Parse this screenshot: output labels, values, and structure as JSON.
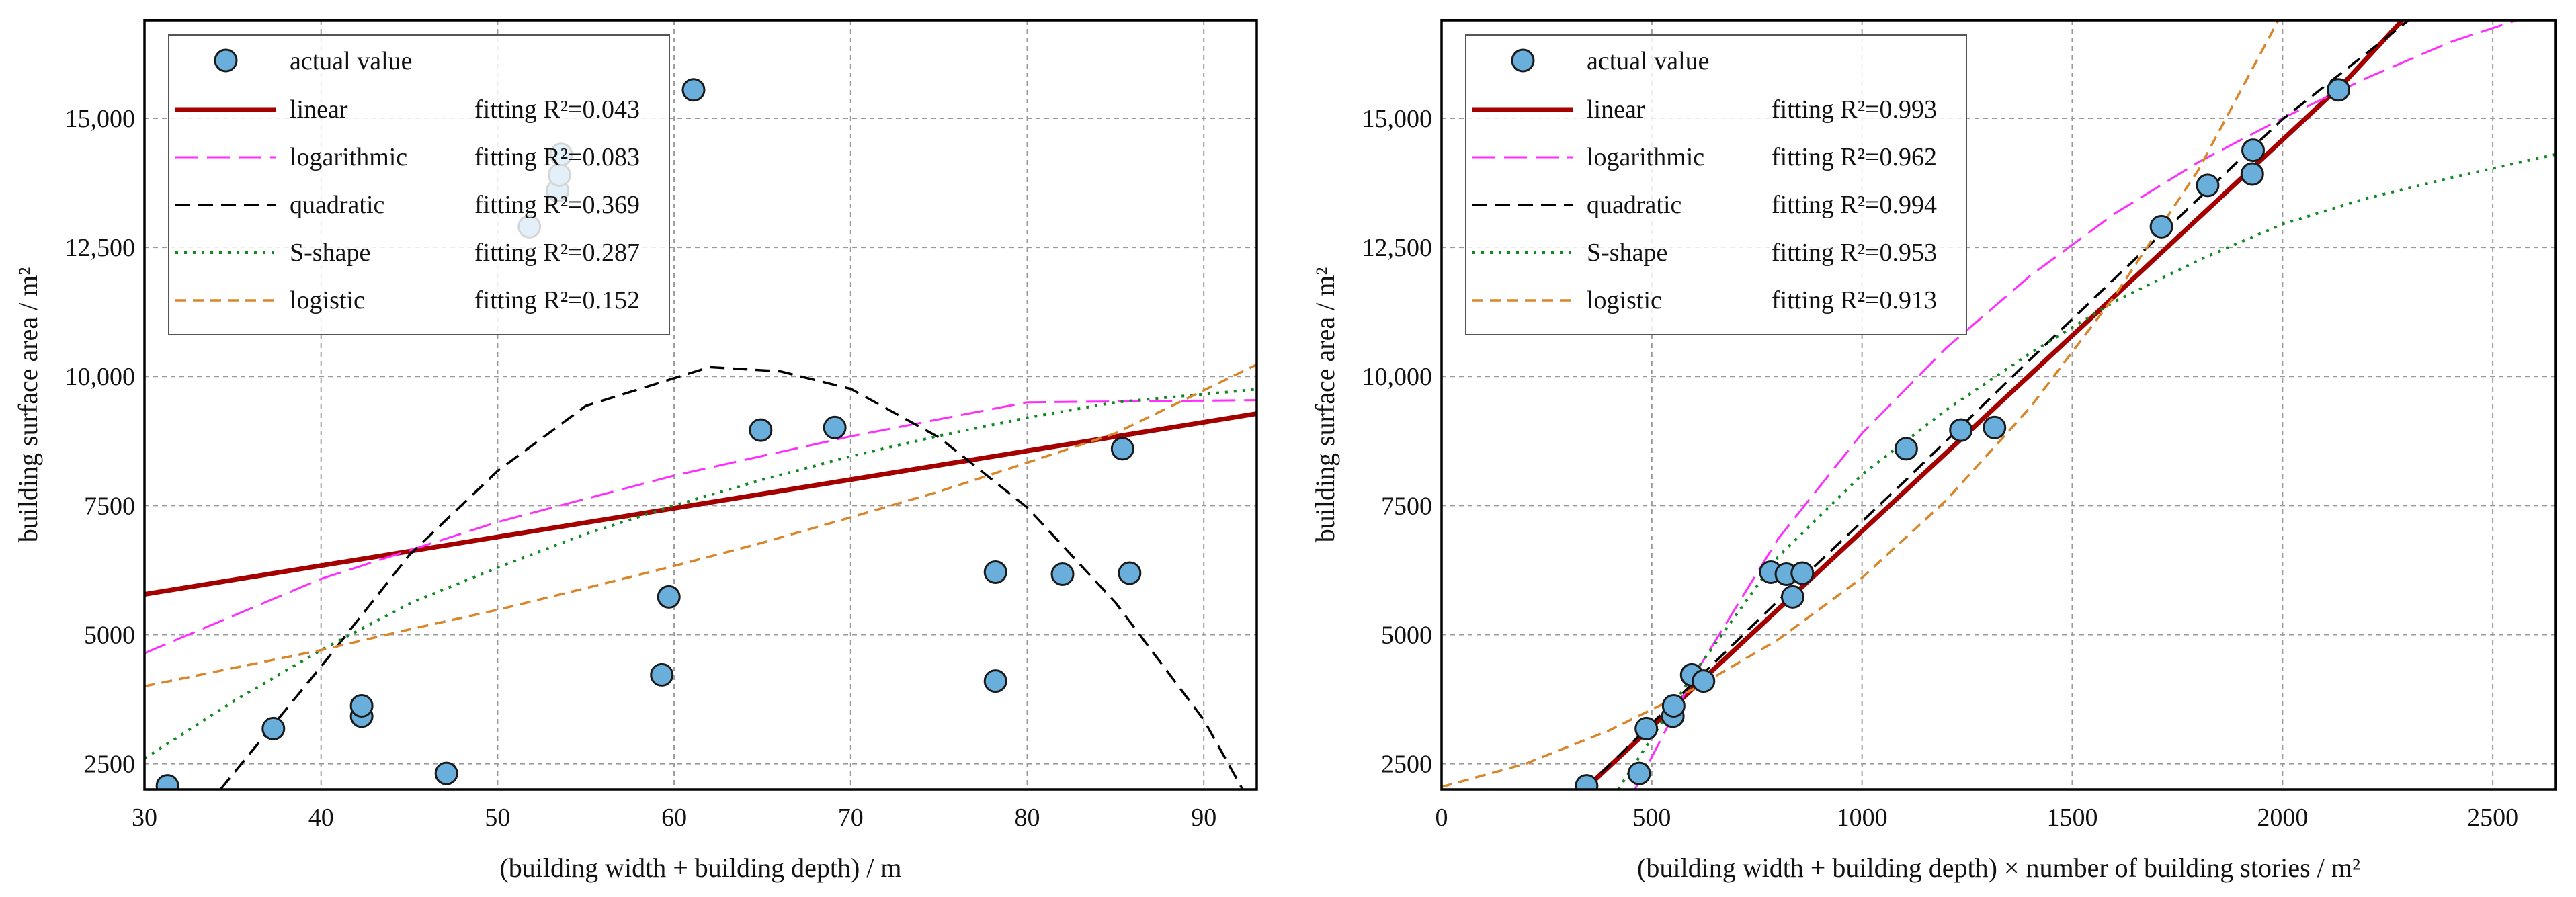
{
  "chart_data": [
    {
      "type": "scatter",
      "xlabel": "(building width + building depth) / m",
      "ylabel": "building surface area / m²",
      "xlim": [
        30,
        93
      ],
      "ylim": [
        2000,
        16900
      ],
      "xticks": [
        30,
        40,
        50,
        60,
        70,
        80,
        90
      ],
      "yticks": [
        2500,
        5000,
        7500,
        10000,
        12500,
        15000
      ],
      "ytick_labels": [
        "2500",
        "5000",
        "7500",
        "10,000",
        "12,500",
        "15,000"
      ],
      "points_name": "actual value",
      "points": [
        {
          "x": 31.3,
          "y": 2070
        },
        {
          "x": 37.3,
          "y": 3180
        },
        {
          "x": 42.3,
          "y": 3420
        },
        {
          "x": 42.3,
          "y": 3620
        },
        {
          "x": 47.1,
          "y": 2310
        },
        {
          "x": 51.8,
          "y": 12900
        },
        {
          "x": 53.4,
          "y": 13600
        },
        {
          "x": 53.5,
          "y": 13900
        },
        {
          "x": 53.6,
          "y": 14300
        },
        {
          "x": 59.3,
          "y": 4220
        },
        {
          "x": 59.7,
          "y": 5730
        },
        {
          "x": 61.1,
          "y": 15550
        },
        {
          "x": 64.9,
          "y": 8960
        },
        {
          "x": 69.1,
          "y": 9010
        },
        {
          "x": 78.2,
          "y": 6210
        },
        {
          "x": 78.2,
          "y": 4100
        },
        {
          "x": 82.0,
          "y": 6170
        },
        {
          "x": 85.4,
          "y": 8600
        },
        {
          "x": 85.8,
          "y": 6190
        }
      ],
      "series": [
        {
          "name": "linear",
          "r2_label": "fitting R²=0.043",
          "color": "#a50000",
          "dash": "",
          "width": 7,
          "curve": [
            [
              30,
              5780
            ],
            [
              93,
              9280
            ]
          ]
        },
        {
          "name": "logarithmic",
          "r2_label": "fitting R²=0.083",
          "color": "#ff2dff",
          "dash": "34 13",
          "width": 3,
          "curve": [
            [
              30,
              4640
            ],
            [
              40,
              6080
            ],
            [
              50,
              7180
            ],
            [
              60,
              8080
            ],
            [
              70,
              8840
            ],
            [
              80,
              9500
            ],
            [
              93,
              9540
            ]
          ]
        },
        {
          "name": "quadratic",
          "r2_label": "fitting R²=0.369",
          "color": "#000000",
          "dash": "22 12",
          "width": 3.5,
          "curve": [
            [
              34.3,
              2000
            ],
            [
              40,
              4380
            ],
            [
              45,
              6540
            ],
            [
              50,
              8170
            ],
            [
              55,
              9430
            ],
            [
              62,
              10180
            ],
            [
              66,
              10100
            ],
            [
              70,
              9760
            ],
            [
              75,
              8820
            ],
            [
              80,
              7460
            ],
            [
              85,
              5620
            ],
            [
              90,
              3350
            ],
            [
              92.2,
              2000
            ]
          ]
        },
        {
          "name": "S-shape",
          "r2_label": "fitting R²=0.287",
          "color": "#0f8a1e",
          "dash": "4 9",
          "width": 4,
          "curve": [
            [
              30,
              2600
            ],
            [
              35,
              3700
            ],
            [
              40,
              4700
            ],
            [
              45,
              5600
            ],
            [
              50,
              6300
            ],
            [
              55,
              6950
            ],
            [
              60,
              7500
            ],
            [
              65,
              8000
            ],
            [
              70,
              8450
            ],
            [
              75,
              8850
            ],
            [
              80,
              9200
            ],
            [
              85,
              9500
            ],
            [
              93,
              9750
            ]
          ]
        },
        {
          "name": "logistic",
          "r2_label": "fitting R²=0.152",
          "color": "#d9862a",
          "dash": "16 10",
          "width": 3.5,
          "curve": [
            [
              30,
              4000
            ],
            [
              35,
              4350
            ],
            [
              40,
              4700
            ],
            [
              45,
              5100
            ],
            [
              50,
              5480
            ],
            [
              55,
              5900
            ],
            [
              60,
              6330
            ],
            [
              65,
              6780
            ],
            [
              70,
              7270
            ],
            [
              75,
              7770
            ],
            [
              80,
              8330
            ],
            [
              85,
              8900
            ],
            [
              93,
              10230
            ]
          ]
        }
      ]
    },
    {
      "type": "scatter",
      "xlabel": "(building width + building depth) × number of building stories / m²",
      "ylabel": "building surface area / m²",
      "xlim": [
        0,
        2650
      ],
      "ylim": [
        2000,
        16900
      ],
      "xticks": [
        0,
        500,
        1000,
        1500,
        2000,
        2500
      ],
      "yticks": [
        2500,
        5000,
        7500,
        10000,
        12500,
        15000
      ],
      "ytick_labels": [
        "2500",
        "5000",
        "7500",
        "10,000",
        "12,500",
        "15,000"
      ],
      "points_name": "actual value",
      "points": [
        {
          "x": 345,
          "y": 2070
        },
        {
          "x": 470,
          "y": 2310
        },
        {
          "x": 487,
          "y": 3180
        },
        {
          "x": 550,
          "y": 3420
        },
        {
          "x": 552,
          "y": 3620
        },
        {
          "x": 595,
          "y": 4220
        },
        {
          "x": 623,
          "y": 4100
        },
        {
          "x": 783,
          "y": 6210
        },
        {
          "x": 820,
          "y": 6170
        },
        {
          "x": 835,
          "y": 5730
        },
        {
          "x": 858,
          "y": 6190
        },
        {
          "x": 1105,
          "y": 8600
        },
        {
          "x": 1235,
          "y": 8960
        },
        {
          "x": 1315,
          "y": 9010
        },
        {
          "x": 1712,
          "y": 12900
        },
        {
          "x": 1822,
          "y": 13700
        },
        {
          "x": 1928,
          "y": 13920
        },
        {
          "x": 1930,
          "y": 14380
        },
        {
          "x": 2133,
          "y": 15550
        }
      ],
      "series": [
        {
          "name": "linear",
          "r2_label": "fitting R²=0.993",
          "color": "#a50000",
          "dash": "",
          "width": 7,
          "curve": [
            [
              340,
              2000
            ],
            [
              2150,
              15720
            ],
            [
              2285,
              16900
            ]
          ]
        },
        {
          "name": "logarithmic",
          "r2_label": "fitting R²=0.962",
          "color": "#ff2dff",
          "dash": "34 13",
          "width": 3,
          "curve": [
            [
              460,
              2000
            ],
            [
              600,
              4200
            ],
            [
              800,
              6850
            ],
            [
              1000,
              8900
            ],
            [
              1200,
              10550
            ],
            [
              1400,
              11950
            ],
            [
              1600,
              13150
            ],
            [
              1800,
              14150
            ],
            [
              2000,
              15000
            ],
            [
              2200,
              15780
            ],
            [
              2400,
              16480
            ],
            [
              2650,
              17150
            ]
          ]
        },
        {
          "name": "quadratic",
          "r2_label": "fitting R²=0.994",
          "color": "#000000",
          "dash": "22 12",
          "width": 3.5,
          "curve": [
            [
              340,
              2000
            ],
            [
              500,
              3280
            ],
            [
              800,
              5650
            ],
            [
              1100,
              7960
            ],
            [
              1400,
              10330
            ],
            [
              1700,
              12670
            ],
            [
              2000,
              14980
            ],
            [
              2300,
              16900
            ]
          ]
        },
        {
          "name": "S-shape",
          "r2_label": "fitting R²=0.953",
          "color": "#0f8a1e",
          "dash": "4 9",
          "width": 4,
          "curve": [
            [
              420,
              2000
            ],
            [
              500,
              3000
            ],
            [
              600,
              4250
            ],
            [
              800,
              6500
            ],
            [
              1000,
              8100
            ],
            [
              1200,
              9350
            ],
            [
              1400,
              10450
            ],
            [
              1600,
              11450
            ],
            [
              1800,
              12250
            ],
            [
              2000,
              12950
            ],
            [
              2200,
              13450
            ],
            [
              2400,
              13850
            ],
            [
              2650,
              14300
            ]
          ]
        },
        {
          "name": "logistic",
          "r2_label": "fitting R²=0.913",
          "color": "#d9862a",
          "dash": "16 10",
          "width": 3.5,
          "curve": [
            [
              0,
              2050
            ],
            [
              200,
              2500
            ],
            [
              400,
              3150
            ],
            [
              600,
              3950
            ],
            [
              800,
              4900
            ],
            [
              1000,
              6100
            ],
            [
              1200,
              7600
            ],
            [
              1400,
              9400
            ],
            [
              1600,
              11550
            ],
            [
              1800,
              14000
            ],
            [
              1990,
              16900
            ]
          ]
        }
      ]
    }
  ]
}
